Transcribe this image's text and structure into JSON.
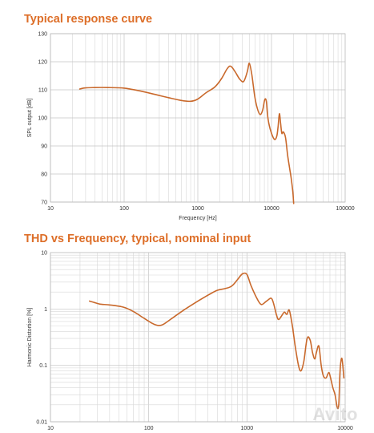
{
  "chart_data": [
    {
      "type": "line",
      "title": "Typical response curve",
      "xlabel": "Frequency [Hz]",
      "ylabel": "SPL output [dB]",
      "xscale": "log",
      "xlim": [
        10,
        100000
      ],
      "ylim": [
        70,
        130
      ],
      "grid": true,
      "xticks": [
        10,
        100,
        1000,
        10000,
        100000
      ],
      "xtick_labels": [
        "10",
        "100",
        "1000",
        "10000",
        "100000"
      ],
      "yticks": [
        70,
        80,
        90,
        100,
        110,
        120,
        130
      ],
      "ytick_labels": [
        "70",
        "80",
        "90",
        "100",
        "110",
        "120",
        "130"
      ],
      "color": "#c9692c",
      "series": [
        {
          "x": [
            25,
            30,
            40,
            60,
            100,
            150,
            250,
            400,
            600,
            800,
            1000,
            1300,
            1700,
            2100,
            2500,
            2800,
            3200,
            3700,
            4200,
            4700,
            5000,
            5400,
            5900,
            6400,
            7000,
            7600,
            8100,
            8500,
            8800,
            9200,
            10000,
            11000,
            11800,
            12300,
            12800,
            13300,
            13800,
            14500,
            15500,
            16500,
            17500,
            18500,
            19500,
            20000
          ],
          "y": [
            110.3,
            110.7,
            110.8,
            110.8,
            110.6,
            109.8,
            108.5,
            107.2,
            106.2,
            105.9,
            106.7,
            109.0,
            111.0,
            114.0,
            117.5,
            118.4,
            116.5,
            113.8,
            113.0,
            116.5,
            119.5,
            115.5,
            108.0,
            103.5,
            101.2,
            102.8,
            106.5,
            106.0,
            101.5,
            98.0,
            94.5,
            92.3,
            93.5,
            97.0,
            101.5,
            98.0,
            94.5,
            95.0,
            93.0,
            87.0,
            82.5,
            78.5,
            73.5,
            69.5
          ]
        }
      ]
    },
    {
      "type": "line",
      "title": "THD vs Frequency, typical, nominal input",
      "xlabel": "",
      "ylabel": "Harmonic Distortion [%]",
      "xscale": "log",
      "yscale": "log",
      "xlim": [
        10,
        10000
      ],
      "ylim": [
        0.01,
        10
      ],
      "grid": true,
      "xticks": [
        10,
        100,
        1000,
        10000
      ],
      "xtick_labels": [
        "10",
        "100",
        "1000",
        "10000"
      ],
      "yticks": [
        0.01,
        0.1,
        1,
        10
      ],
      "ytick_labels": [
        "0.01",
        "0.1",
        "1",
        "10"
      ],
      "color": "#c9692c",
      "series": [
        {
          "x": [
            25,
            28,
            32,
            40,
            55,
            70,
            90,
            110,
            125,
            140,
            170,
            220,
            300,
            400,
            500,
            600,
            700,
            800,
            900,
            1000,
            1100,
            1250,
            1400,
            1600,
            1800,
            2000,
            2100,
            2250,
            2400,
            2550,
            2700,
            2900,
            3100,
            3350,
            3550,
            3800,
            4100,
            4400,
            4650,
            4900,
            5100,
            5400,
            5700,
            6000,
            6400,
            6800,
            7100,
            7500,
            7900,
            8300,
            8600,
            8800,
            9000,
            9300,
            9700
          ],
          "y": [
            1.38,
            1.3,
            1.22,
            1.18,
            1.08,
            0.9,
            0.68,
            0.55,
            0.51,
            0.53,
            0.67,
            0.92,
            1.3,
            1.75,
            2.15,
            2.3,
            2.55,
            3.3,
            4.2,
            4.1,
            2.6,
            1.6,
            1.2,
            1.4,
            1.5,
            0.78,
            0.65,
            0.75,
            0.88,
            0.8,
            0.95,
            0.5,
            0.22,
            0.1,
            0.08,
            0.12,
            0.3,
            0.28,
            0.17,
            0.13,
            0.17,
            0.22,
            0.1,
            0.065,
            0.06,
            0.075,
            0.06,
            0.04,
            0.03,
            0.018,
            0.02,
            0.06,
            0.11,
            0.13,
            0.06
          ]
        }
      ]
    }
  ]
}
